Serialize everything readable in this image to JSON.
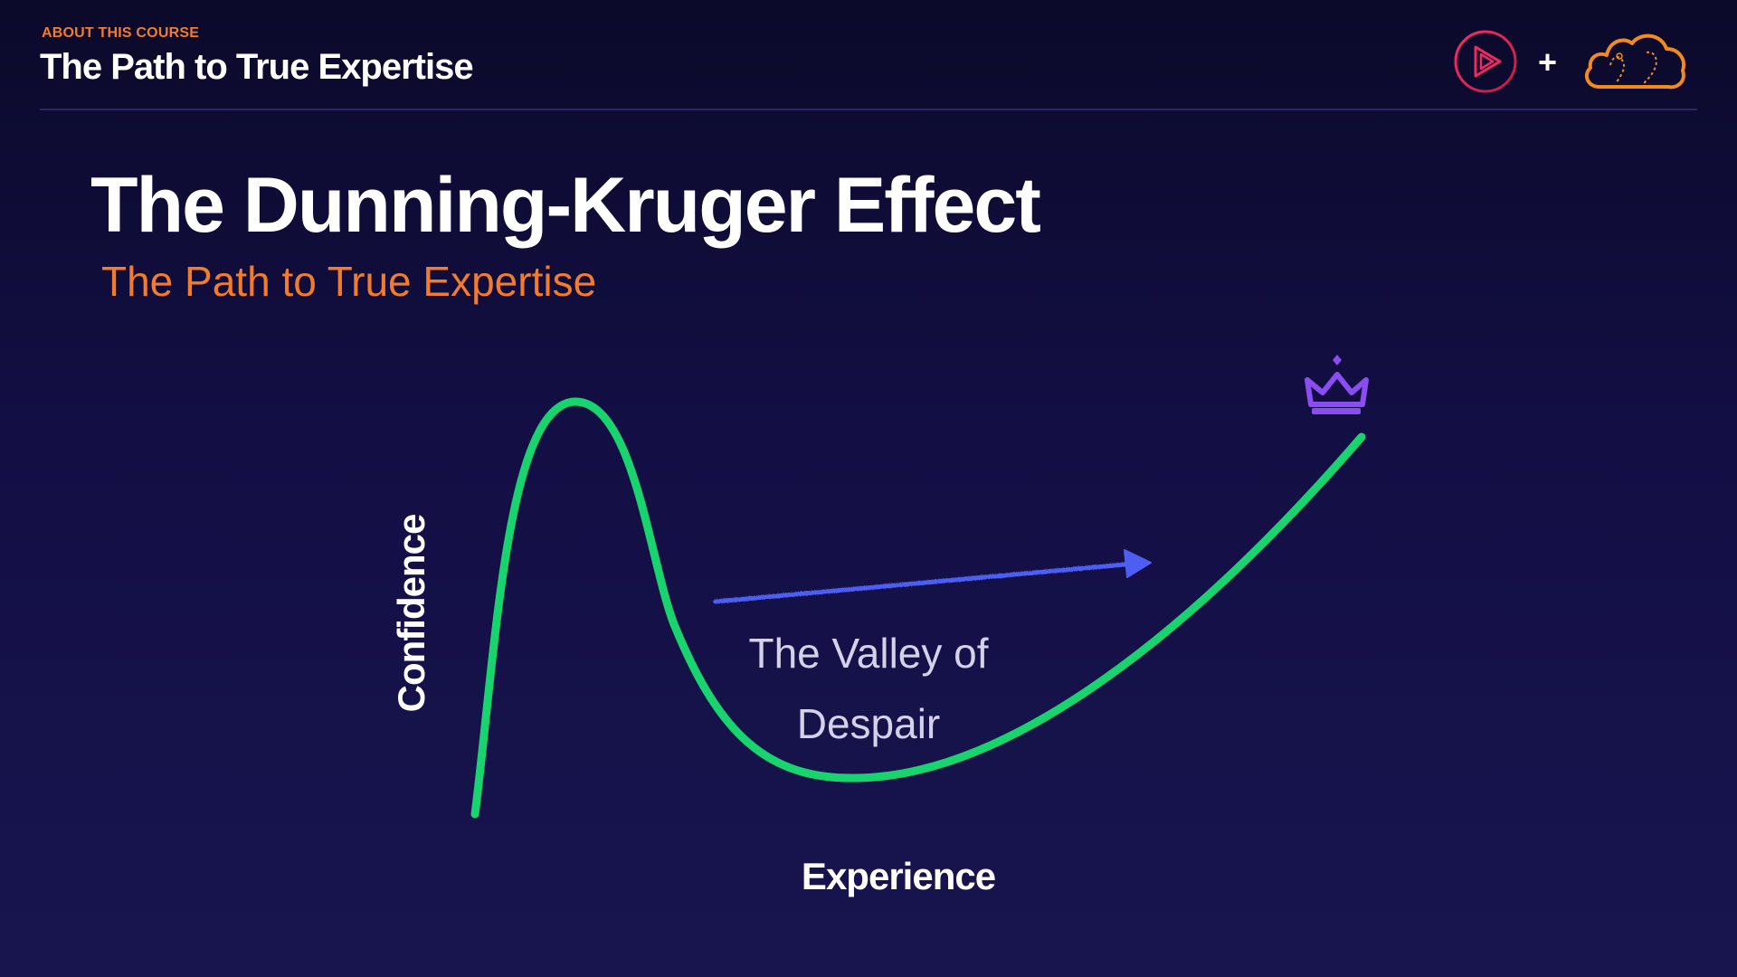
{
  "header": {
    "eyebrow": "ABOUT THIS COURSE",
    "title": "The Path to True Expertise",
    "logos": {
      "left_icon": "play-logo-icon",
      "separator": "+",
      "right_icon": "cloud-logo-icon"
    }
  },
  "slide": {
    "title": "The Dunning-Kruger Effect",
    "subtitle": "The Path to True Expertise"
  },
  "diagram": {
    "y_axis_label": "Confidence",
    "x_axis_label": "Experience",
    "annotation_line1": "The Valley of",
    "annotation_line2": "Despair",
    "arrow_icon": "arrow-right-icon",
    "goal_icon": "crown-icon",
    "colors": {
      "curve": "#19d46e",
      "axes": "#e0405a",
      "arrow": "#4e5ef2",
      "crown": "#8a4df0",
      "accent": "#f27c2c",
      "logo_pink": "#e8235c"
    }
  }
}
